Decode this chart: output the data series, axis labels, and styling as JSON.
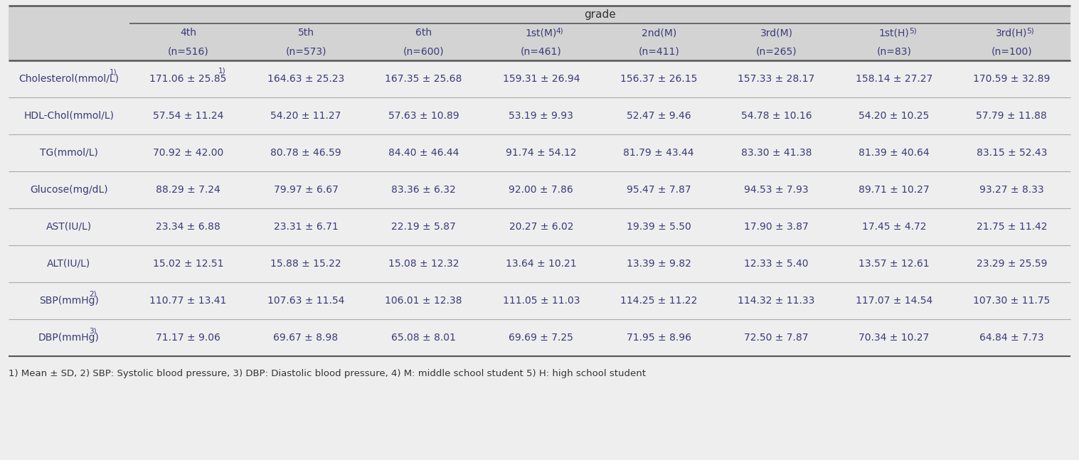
{
  "title_text": "grade",
  "col_headers_line1": [
    "4th",
    "5th",
    "6th",
    "1st(M)",
    "2nd(M)",
    "3rd(M)",
    "1st(H)",
    "3rd(H)"
  ],
  "col_headers_sup": [
    "",
    "",
    "",
    "4)",
    "",
    "",
    "5)",
    "5)"
  ],
  "col_headers_line2": [
    "(n=516)",
    "(n=573)",
    "(n=600)",
    "(n=461)",
    "(n=411)",
    "(n=265)",
    "(n=83)",
    "(n=100)"
  ],
  "row_labels_display": [
    "Cholesterol(mmol/L)",
    "HDL-Chol(mmol/L)",
    "TG(mmol/L)",
    "Glucose(mg/dL)",
    "AST(IU/L)",
    "ALT(IU/L)",
    "SBP(mmHg)",
    "DBP(mmHg)"
  ],
  "row_superscripts": [
    "1)",
    "",
    "",
    "",
    "",
    "",
    "2)",
    "3)"
  ],
  "data_col0_sup": [
    "1)",
    "",
    "",
    "",
    "",
    "",
    "",
    ""
  ],
  "data_clean": [
    [
      "171.06 ± 25.85",
      "164.63 ± 25.23",
      "167.35 ± 25.68",
      "159.31 ± 26.94",
      "156.37 ± 26.15",
      "157.33 ± 28.17",
      "158.14 ± 27.27",
      "170.59 ± 32.89"
    ],
    [
      "57.54 ± 11.24",
      "54.20 ± 11.27",
      "57.63 ± 10.89",
      "53.19 ± 9.93",
      "52.47 ± 9.46",
      "54.78 ± 10.16",
      "54.20 ± 10.25",
      "57.79 ± 11.88"
    ],
    [
      "70.92 ± 42.00",
      "80.78 ± 46.59",
      "84.40 ± 46.44",
      "91.74 ± 54.12",
      "81.79 ± 43.44",
      "83.30 ± 41.38",
      "81.39 ± 40.64",
      "83.15 ± 52.43"
    ],
    [
      "88.29 ± 7.24",
      "79.97 ± 6.67",
      "83.36 ± 6.32",
      "92.00 ± 7.86",
      "95.47 ± 7.87",
      "94.53 ± 7.93",
      "89.71 ± 10.27",
      "93.27 ± 8.33"
    ],
    [
      "23.34 ± 6.88",
      "23.31 ± 6.71",
      "22.19 ± 5.87",
      "20.27 ± 6.02",
      "19.39 ± 5.50",
      "17.90 ± 3.87",
      "17.45 ± 4.72",
      "21.75 ± 11.42"
    ],
    [
      "15.02 ± 12.51",
      "15.88 ± 15.22",
      "15.08 ± 12.32",
      "13.64 ± 10.21",
      "13.39 ± 9.82",
      "12.33 ± 5.40",
      "13.57 ± 12.61",
      "23.29 ± 25.59"
    ],
    [
      "110.77 ± 13.41",
      "107.63 ± 11.54",
      "106.01 ± 12.38",
      "111.05 ± 11.03",
      "114.25 ± 11.22",
      "114.32 ± 11.33",
      "117.07 ± 14.54",
      "107.30 ± 11.75"
    ],
    [
      "71.17 ± 9.06",
      "69.67 ± 8.98",
      "65.08 ± 8.01",
      "69.69 ± 7.25",
      "71.95 ± 8.96",
      "72.50 ± 7.87",
      "70.34 ± 10.27",
      "64.84 ± 7.73"
    ]
  ],
  "footnote": "1) Mean ± SD, 2) SBP: Systolic blood pressure, 3) DBP: Diastolic blood pressure, 4) M: middle school student 5) H: high school student",
  "header_bg_color": "#d3d3d3",
  "text_color": "#3a3a7a",
  "dark_line_color": "#555555",
  "light_line_color": "#aaaaaa",
  "fig_bg": "#eeeeee"
}
